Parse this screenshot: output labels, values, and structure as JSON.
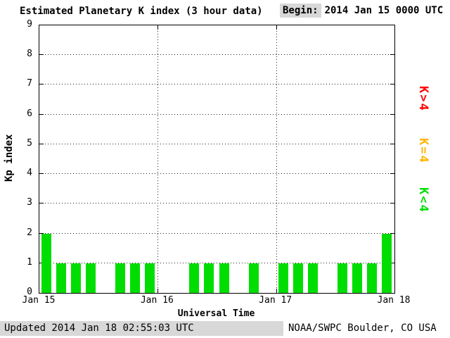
{
  "title": "Estimated Planetary K index (3 hour data)",
  "begin_label": "Begin:",
  "begin_value": "2014 Jan 15 0000 UTC",
  "footer": {
    "updated": "Updated 2014 Jan 18 02:55:03 UTC",
    "source": "NOAA/SWPC Boulder, CO USA"
  },
  "chart_data": {
    "type": "bar",
    "title": "Estimated Planetary K index (3 hour data)",
    "xlabel": "Universal Time",
    "ylabel": "Kp index",
    "ylim": [
      0,
      9
    ],
    "yticks": [
      "0",
      "1",
      "2",
      "3",
      "4",
      "5",
      "6",
      "7",
      "8",
      "9"
    ],
    "xticks": [
      "Jan 15",
      "Jan 16",
      "Jan 17",
      "Jan 18"
    ],
    "bar_interval_hours": 3,
    "values": [
      2,
      1,
      1,
      1,
      0,
      1,
      1,
      1,
      0,
      0,
      1,
      1,
      1,
      0,
      1,
      0,
      1,
      1,
      1,
      0,
      1,
      1,
      1,
      2
    ],
    "bar_color_rule": {
      "lt4": "#00dd00",
      "eq4": "#ffb400",
      "gt4": "#ff0000"
    },
    "legend": [
      {
        "label": "K>4",
        "color": "#ff0000"
      },
      {
        "label": "K=4",
        "color": "#ffb400"
      },
      {
        "label": "K<4",
        "color": "#00dd00"
      }
    ],
    "grid": true,
    "legend_position": "right"
  }
}
